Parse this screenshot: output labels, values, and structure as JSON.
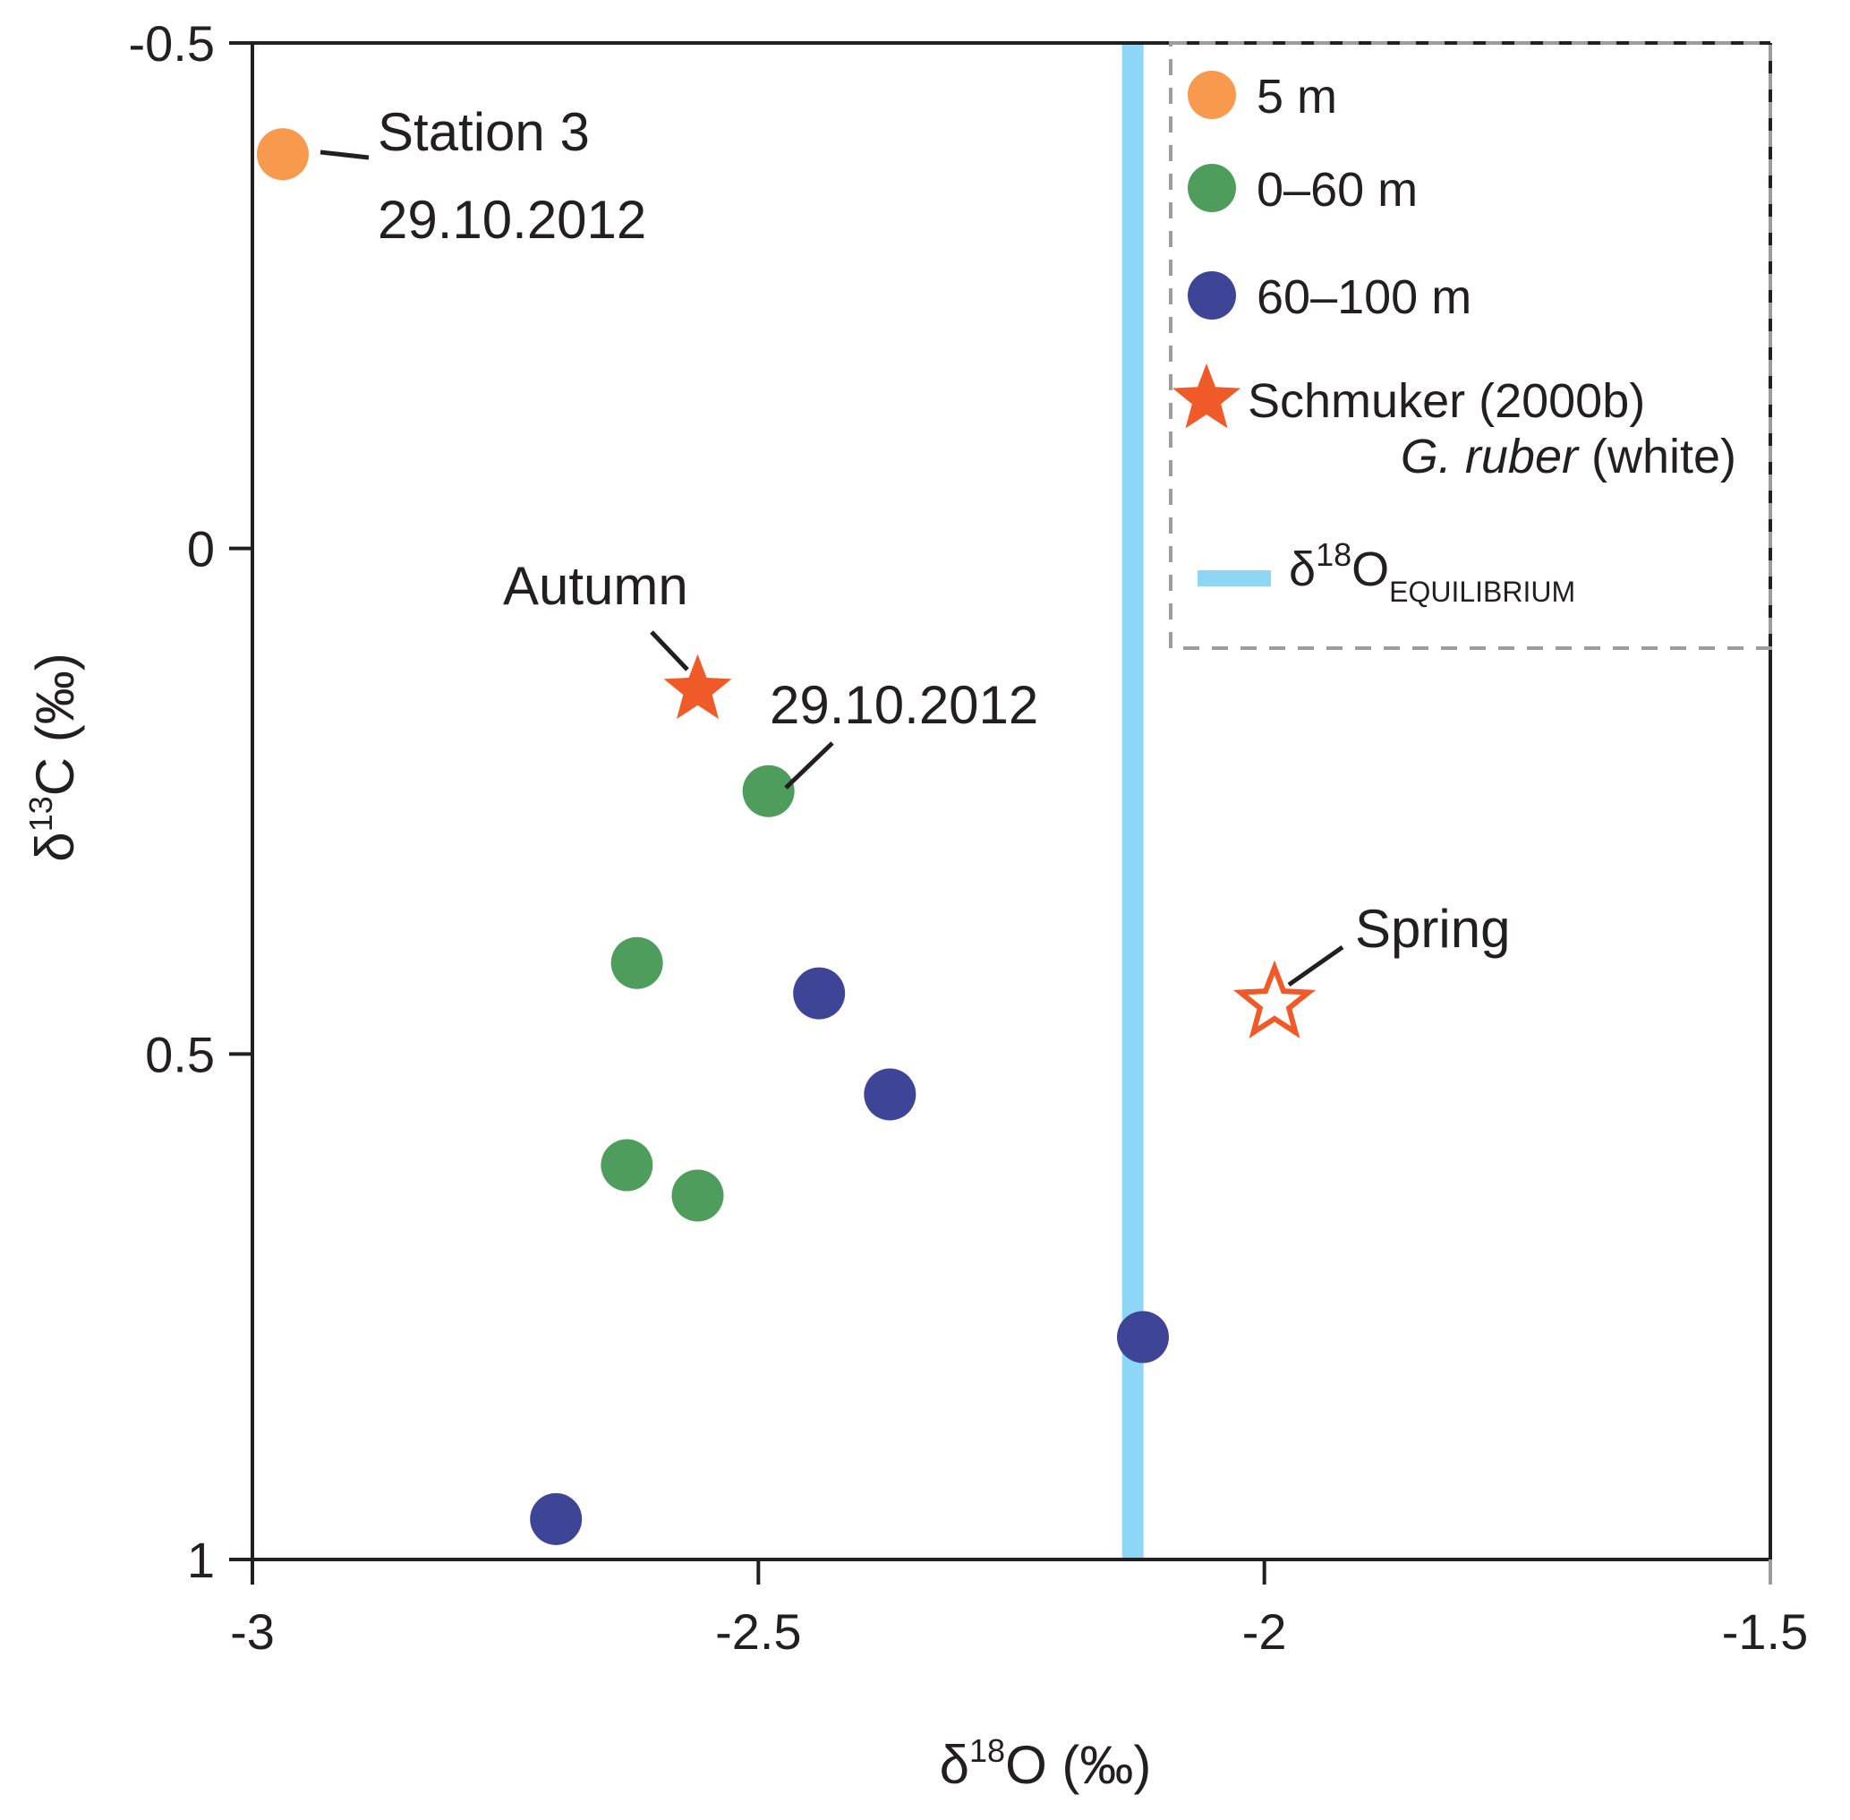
{
  "chart_data": {
    "type": "scatter",
    "title": "",
    "xlabel": "δ18O (‰)",
    "ylabel": "δ13C (‰)",
    "xlim": [
      -3,
      -1.5
    ],
    "ylim": [
      -0.5,
      1
    ],
    "y_inverted": true,
    "x_ticks": [
      -3,
      -2.5,
      -2,
      -1.5
    ],
    "x_tick_labels": [
      "-3",
      "-2.5",
      "-2",
      "-1.5"
    ],
    "y_ticks": [
      -0.5,
      0,
      0.5,
      1
    ],
    "y_tick_labels": [
      "-0.5",
      "0",
      "0.5",
      "1"
    ],
    "grid": false,
    "legend_position": "top-right",
    "series": [
      {
        "name": "5 m",
        "marker": "circle",
        "color": "#f79a4e",
        "points": [
          {
            "x": -2.97,
            "y": -0.39
          }
        ]
      },
      {
        "name": "0–60 m",
        "marker": "circle",
        "color": "#4f9d5c",
        "points": [
          {
            "x": -2.49,
            "y": 0.24
          },
          {
            "x": -2.62,
            "y": 0.41
          },
          {
            "x": -2.63,
            "y": 0.61
          },
          {
            "x": -2.56,
            "y": 0.64
          }
        ]
      },
      {
        "name": "60–100 m",
        "marker": "circle",
        "color": "#3f4596",
        "points": [
          {
            "x": -2.44,
            "y": 0.44
          },
          {
            "x": -2.37,
            "y": 0.54
          },
          {
            "x": -2.12,
            "y": 0.78
          },
          {
            "x": -2.7,
            "y": 0.96
          }
        ]
      },
      {
        "name": "Schmuker (2000b) G. ruber (white)",
        "marker": "star",
        "color": "#f05a28",
        "points": [
          {
            "x": -2.56,
            "y": 0.14,
            "label": "Autumn",
            "filled": true
          },
          {
            "x": -1.99,
            "y": 0.45,
            "label": "Spring",
            "filled": false
          }
        ]
      }
    ],
    "reference_lines": [
      {
        "name": "δ18O EQUILIBRIUM",
        "orientation": "vertical",
        "x": -2.13,
        "color": "#8ed6f5"
      }
    ],
    "annotations": [
      {
        "lines": [
          "Station 3",
          "29.10.2012"
        ],
        "x": -2.97,
        "y": -0.39
      },
      {
        "lines": [
          "29.10.2012"
        ],
        "x": -2.49,
        "y": 0.24
      },
      {
        "lines": [
          "Autumn"
        ],
        "x": -2.56,
        "y": 0.14
      },
      {
        "lines": [
          "Spring"
        ],
        "x": -1.99,
        "y": 0.45
      }
    ]
  },
  "axis_titles": {
    "x": {
      "base": "δ",
      "sup": "18",
      "rest": "O (‰)"
    },
    "y": {
      "base": "δ",
      "sup": "13",
      "rest": "C (‰)"
    }
  },
  "legend": {
    "items": [
      {
        "label": "5 m",
        "marker": "circle",
        "color": "#f79a4e"
      },
      {
        "label": "0–60 m",
        "marker": "circle",
        "color": "#4f9d5c"
      },
      {
        "label": "60–100 m",
        "marker": "circle",
        "color": "#3f4596"
      },
      {
        "label": "Schmuker (2000b)",
        "marker": "star",
        "color": "#f05a28"
      }
    ],
    "species": {
      "italic": "G. ruber",
      "rest": " (white)"
    },
    "equilibrium": {
      "base": "δ",
      "sup": "18",
      "main": "O",
      "sub": "EQUILIBRIUM",
      "color": "#8ed6f5"
    }
  }
}
